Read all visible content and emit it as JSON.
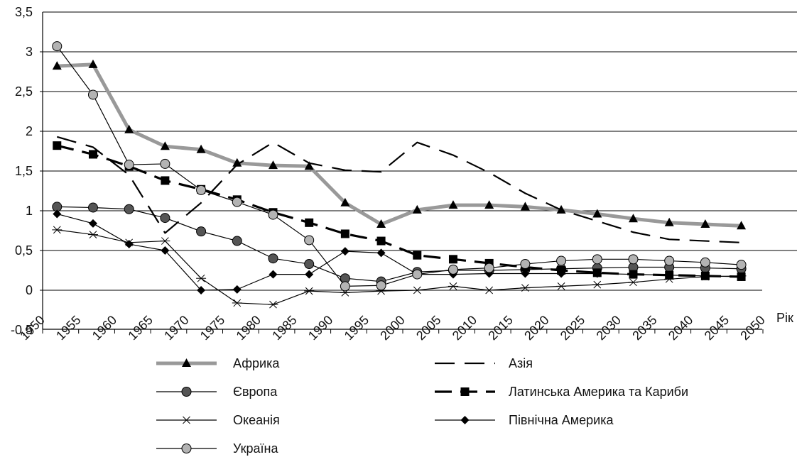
{
  "chart_data": {
    "type": "line",
    "title": "",
    "xlabel": "Рік",
    "ylabel": "",
    "xlim": [
      1950,
      2050
    ],
    "ylim": [
      -0.5,
      3.5
    ],
    "xticks": [
      "1950",
      "1955",
      "1960",
      "1965",
      "1970",
      "1975",
      "1980",
      "1985",
      "1990",
      "1995",
      "2000",
      "2005",
      "2010",
      "2015",
      "2020",
      "2025",
      "2030",
      "2035",
      "2040",
      "2045",
      "2050"
    ],
    "yticks": [
      "-0,5",
      "0",
      "0,5",
      "1",
      "1,5",
      "2",
      "2,5",
      "3",
      "3,5"
    ],
    "grid": "horizontal",
    "legend_position": "bottom",
    "series": [
      {
        "name": "Африка",
        "style": "thick-gray-triangle",
        "x": [
          1952,
          1957,
          1962,
          1967,
          1972,
          1977,
          1982,
          1987,
          1992,
          1997,
          2002,
          2007,
          2012,
          2017,
          2022,
          2027,
          2032,
          2037,
          2042,
          2047
        ],
        "y": [
          2.82,
          2.84,
          2.02,
          1.81,
          1.77,
          1.6,
          1.57,
          1.56,
          1.1,
          0.83,
          1.01,
          1.07,
          1.07,
          1.05,
          1.01,
          0.96,
          0.9,
          0.85,
          0.83,
          0.81
        ]
      },
      {
        "name": "Азія",
        "style": "dashed-black",
        "x": [
          1952,
          1957,
          1962,
          1967,
          1972,
          1977,
          1982,
          1987,
          1992,
          1997,
          2002,
          2007,
          2012,
          2017,
          2022,
          2027,
          2032,
          2037,
          2042,
          2047
        ],
        "y": [
          1.93,
          1.8,
          1.45,
          0.72,
          1.1,
          1.58,
          1.86,
          1.6,
          1.51,
          1.49,
          1.86,
          1.7,
          1.48,
          1.22,
          1.01,
          0.87,
          0.73,
          0.64,
          0.62,
          0.6
        ]
      },
      {
        "name": "Європа",
        "style": "thin-black-circle-dark",
        "x": [
          1952,
          1957,
          1962,
          1967,
          1972,
          1977,
          1982,
          1987,
          1992,
          1997,
          2002,
          2007,
          2012,
          2017,
          2022,
          2027,
          2032,
          2037,
          2042,
          2047
        ],
        "y": [
          1.05,
          1.04,
          1.02,
          0.91,
          0.74,
          0.62,
          0.4,
          0.33,
          0.15,
          0.11,
          0.23,
          0.25,
          0.25,
          0.26,
          0.27,
          0.28,
          0.29,
          0.29,
          0.28,
          0.27
        ]
      },
      {
        "name": "Латинська Америка та Кариби",
        "style": "thick-dashed-square",
        "x": [
          1952,
          1957,
          1962,
          1967,
          1972,
          1977,
          1982,
          1987,
          1992,
          1997,
          2002,
          2007,
          2012,
          2017,
          2022,
          2027,
          2032,
          2037,
          2042,
          2047
        ],
        "y": [
          1.82,
          1.71,
          1.56,
          1.38,
          1.27,
          1.14,
          0.98,
          0.85,
          0.71,
          0.62,
          0.44,
          0.39,
          0.34,
          0.29,
          0.25,
          0.22,
          0.2,
          0.19,
          0.18,
          0.17
        ]
      },
      {
        "name": "Океанія",
        "style": "thin-black-star",
        "x": [
          1952,
          1957,
          1962,
          1967,
          1972,
          1977,
          1982,
          1987,
          1992,
          1997,
          2002,
          2007,
          2012,
          2017,
          2022,
          2027,
          2032,
          2037,
          2042,
          2047
        ],
        "y": [
          0.76,
          0.7,
          0.6,
          0.62,
          0.15,
          -0.16,
          -0.18,
          -0.01,
          -0.03,
          -0.01,
          0.0,
          0.05,
          0.0,
          0.03,
          0.05,
          0.07,
          0.1,
          0.14,
          0.17,
          0.18
        ]
      },
      {
        "name": "Північна Америка",
        "style": "thin-black-diamond",
        "x": [
          1952,
          1957,
          1962,
          1967,
          1972,
          1977,
          1982,
          1987,
          1992,
          1997,
          2002,
          2007,
          2012,
          2017,
          2022,
          2027,
          2032,
          2037,
          2042,
          2047
        ],
        "y": [
          0.96,
          0.84,
          0.58,
          0.5,
          0.0,
          0.01,
          0.2,
          0.2,
          0.49,
          0.47,
          0.2,
          0.2,
          0.21,
          0.21,
          0.21,
          0.21,
          0.2,
          0.19,
          0.18,
          0.17
        ]
      },
      {
        "name": "Україна",
        "style": "thin-black-circle-gray",
        "x": [
          1952,
          1957,
          1962,
          1967,
          1972,
          1977,
          1982,
          1987,
          1992,
          1997,
          2002,
          2007,
          2012,
          2017,
          2022,
          2027,
          2032,
          2037,
          2042,
          2047
        ],
        "y": [
          3.07,
          2.46,
          1.58,
          1.59,
          1.26,
          1.11,
          0.95,
          0.63,
          0.05,
          0.06,
          0.2,
          0.26,
          0.28,
          0.33,
          0.37,
          0.39,
          0.39,
          0.37,
          0.35,
          0.32
        ]
      }
    ]
  }
}
